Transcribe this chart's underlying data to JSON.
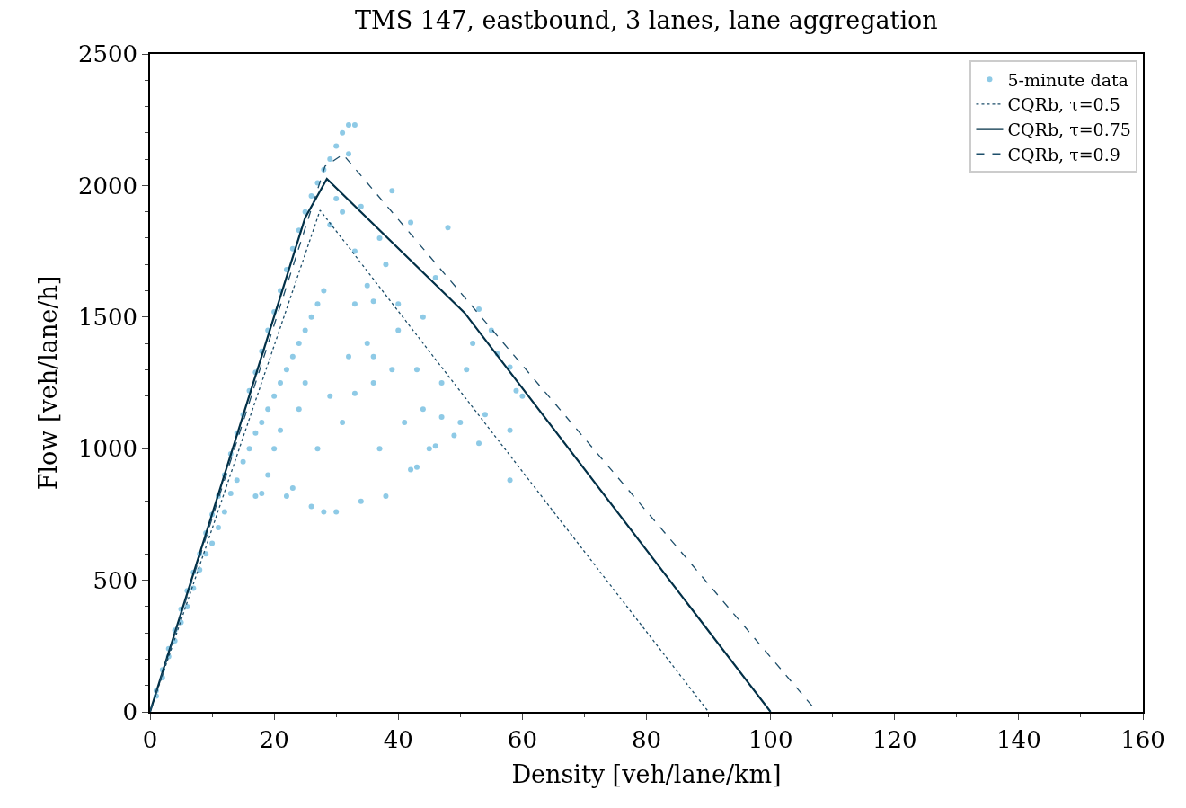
{
  "chart_data": {
    "type": "scatter",
    "title": "TMS 147, eastbound, 3 lanes, lane aggregation",
    "xlabel": "Density [veh/lane/km]",
    "ylabel": "Flow [veh/lane/h]",
    "xlim": [
      0,
      160
    ],
    "xticks": [
      0,
      20,
      40,
      60,
      80,
      100,
      120,
      140,
      160
    ],
    "ylim": [
      0,
      2500
    ],
    "yticks": [
      0,
      500,
      1000,
      1500,
      2000,
      2500
    ],
    "legend": "top right",
    "series": [
      {
        "name": "5-minute data",
        "marker": "circle",
        "color": "#8ecae6",
        "x": [
          1,
          1,
          2,
          2,
          3,
          3,
          4,
          4,
          5,
          5,
          6,
          6,
          7,
          7,
          8,
          8,
          9,
          9,
          10,
          10,
          11,
          11,
          12,
          12,
          13,
          13,
          14,
          14,
          15,
          15,
          16,
          16,
          17,
          17,
          18,
          18,
          19,
          19,
          20,
          20,
          21,
          21,
          22,
          22,
          23,
          23,
          24,
          24,
          25,
          25,
          26,
          26,
          27,
          27,
          28,
          28,
          29,
          29,
          30,
          31,
          32,
          33,
          30,
          31,
          32,
          17,
          18,
          19,
          20,
          21,
          22,
          23,
          24,
          25,
          26,
          27,
          28,
          29,
          30,
          31,
          32,
          33,
          34,
          35,
          36,
          37,
          38,
          39,
          40,
          41,
          42,
          43,
          44,
          45,
          46,
          47,
          48,
          49,
          50,
          51,
          52,
          53,
          54,
          55,
          56,
          58,
          58,
          59,
          60,
          42,
          37,
          38,
          40,
          44,
          35,
          36,
          33,
          34,
          39,
          46,
          47,
          53,
          58,
          43,
          33,
          36
        ],
        "values": [
          60,
          80,
          130,
          160,
          210,
          240,
          270,
          310,
          340,
          390,
          400,
          460,
          470,
          530,
          540,
          600,
          600,
          680,
          640,
          750,
          700,
          820,
          760,
          900,
          830,
          980,
          880,
          1060,
          950,
          1130,
          1000,
          1220,
          1060,
          1290,
          1100,
          1370,
          1150,
          1450,
          1200,
          1520,
          1250,
          1600,
          1300,
          1680,
          1350,
          1760,
          1400,
          1830,
          1450,
          1900,
          1500,
          1960,
          1550,
          2010,
          1600,
          2060,
          1850,
          2100,
          2150,
          2200,
          2230,
          2230,
          1950,
          1900,
          2120,
          820,
          830,
          900,
          1000,
          1070,
          820,
          850,
          1150,
          1250,
          780,
          1000,
          760,
          1200,
          760,
          1100,
          1350,
          1550,
          800,
          1400,
          1250,
          1000,
          820,
          1300,
          1450,
          1100,
          920,
          1300,
          1150,
          1000,
          1650,
          1250,
          1840,
          1050,
          1100,
          1300,
          1400,
          1530,
          1130,
          1450,
          1360,
          880,
          1310,
          1220,
          1200,
          1860,
          1800,
          1700,
          1550,
          1500,
          1620,
          1350,
          1750,
          1920,
          1980,
          1010,
          1120,
          1020,
          1070,
          930,
          1210,
          1560
        ]
      },
      {
        "name": "CQRb, τ=0.5",
        "type": "line",
        "line_style": "dotted",
        "color": "#1d4e6a",
        "x": [
          0,
          27.4,
          90
        ],
        "values": [
          0,
          1906,
          0
        ]
      },
      {
        "name": "CQRb, τ=0.75",
        "type": "line",
        "line_style": "solid",
        "color": "#023047",
        "x": [
          0,
          25.0,
          28.5,
          50.7,
          100
        ],
        "values": [
          0,
          1878,
          2025,
          1516,
          0
        ]
      },
      {
        "name": "CQRb, τ=0.9",
        "type": "line",
        "line_style": "dashed",
        "color": "#1d4e6a",
        "x": [
          0,
          28.2,
          31.1,
          107.5
        ],
        "values": [
          0,
          2073,
          2118,
          0
        ]
      }
    ]
  }
}
